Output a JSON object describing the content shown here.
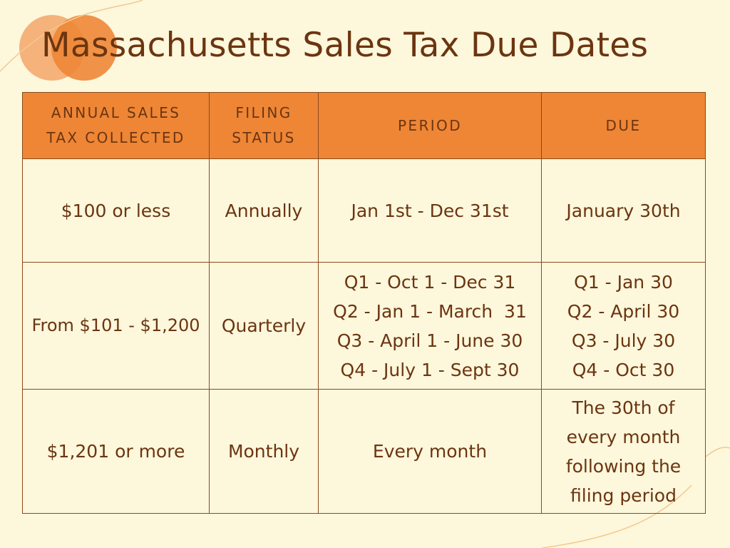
{
  "title": "Massachusetts Sales Tax Due Dates",
  "colors": {
    "background": "#fdf7dc",
    "header": "#ee8636",
    "text": "#6b3510",
    "circle_light": "#f5b27a",
    "circle_dark": "#ee8636"
  },
  "table": {
    "headers": [
      "ANNUAL SALES TAX COLLECTED",
      "FILING STATUS",
      "PERIOD",
      "DUE"
    ],
    "rows": [
      {
        "sales": "$100 or less",
        "status": "Annually",
        "period": [
          "Jan 1st - Dec 31st"
        ],
        "due": [
          "January 30th"
        ]
      },
      {
        "sales": "From $101 - $1,200",
        "status": "Quarterly",
        "period": [
          "Q1 - Oct 1 - Dec 31",
          "Q2 - Jan 1 - March  31",
          "Q3 - April 1 - June 30",
          "Q4 - July 1 - Sept 30"
        ],
        "due": [
          "Q1 - Jan 30",
          "Q2 - April 30",
          "Q3 - July 30",
          "Q4 - Oct 30"
        ]
      },
      {
        "sales": "$1,201 or more",
        "status": "Monthly",
        "period": [
          "Every month"
        ],
        "due": [
          "The 30th of every month following the filing period"
        ]
      }
    ]
  }
}
